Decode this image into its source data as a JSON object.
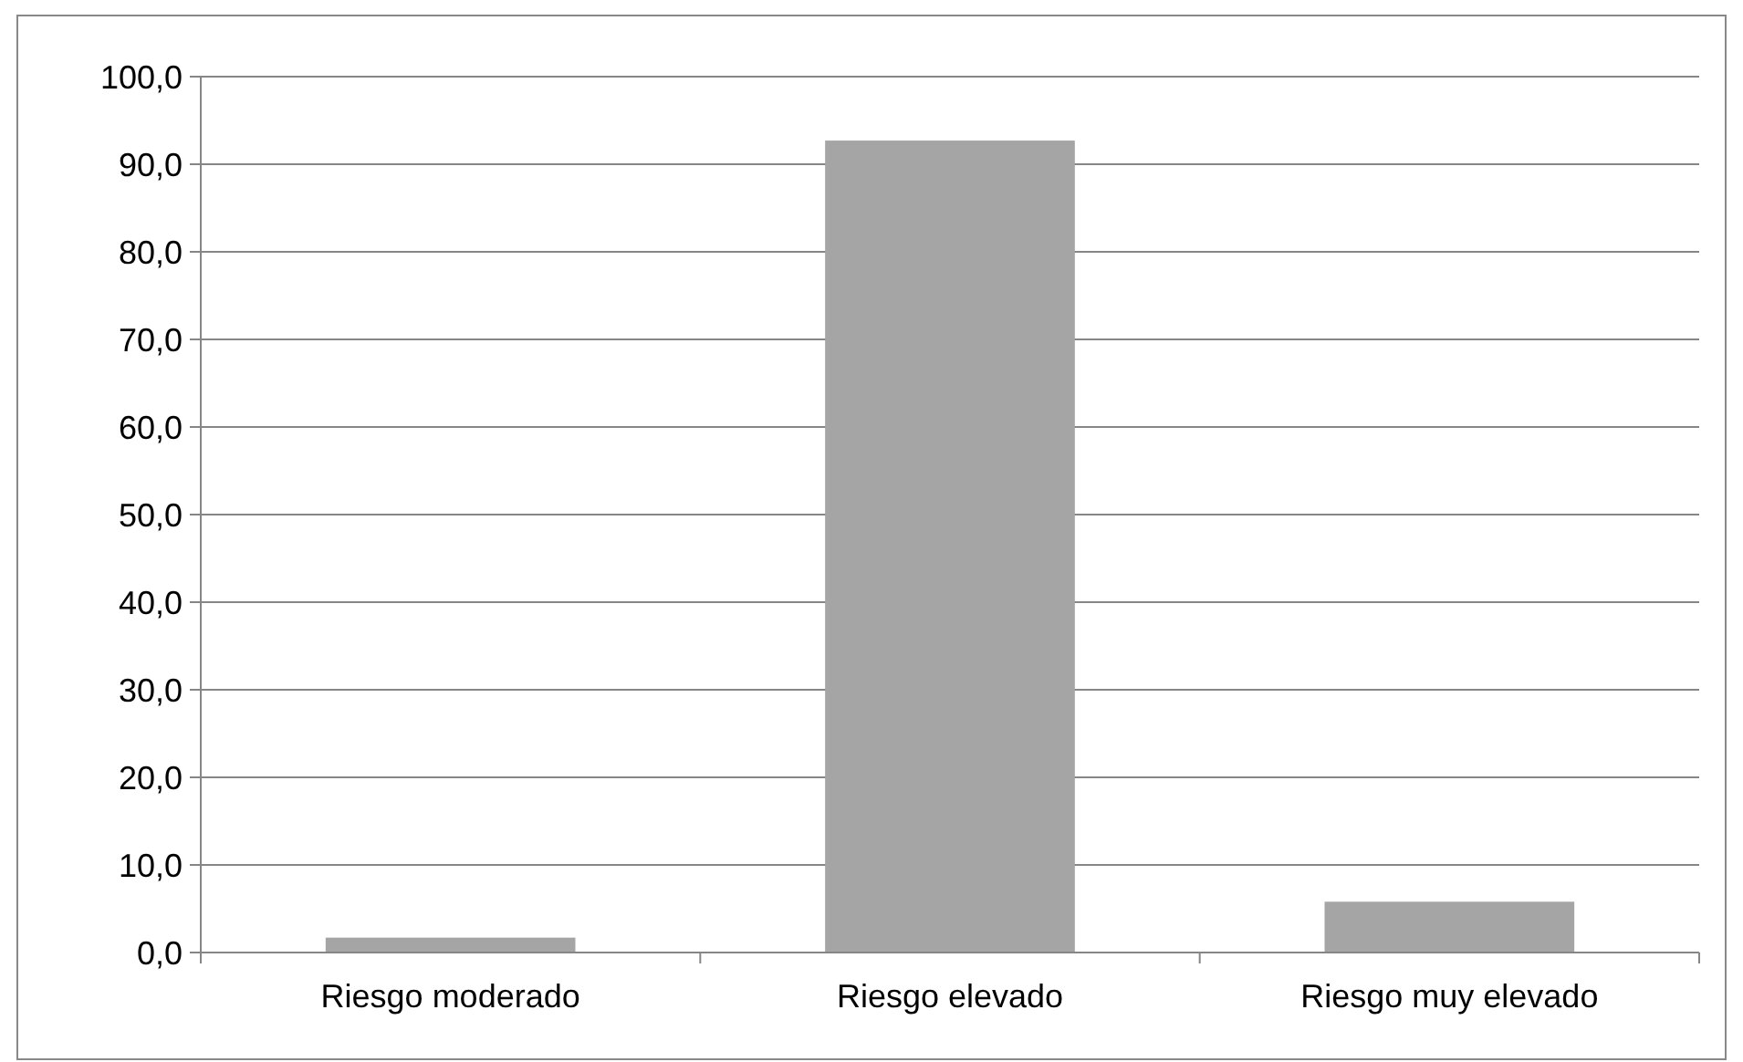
{
  "chart_data": {
    "type": "bar",
    "categories": [
      "Riesgo moderado",
      "Riesgo elevado",
      "Riesgo muy elevado"
    ],
    "values": [
      1.7,
      92.7,
      5.8
    ],
    "color": "#a5a5a5",
    "ylim": [
      0,
      100
    ],
    "yticks": [
      {
        "value": 0,
        "label": "0,0"
      },
      {
        "value": 10,
        "label": "10,0"
      },
      {
        "value": 20,
        "label": "20,0"
      },
      {
        "value": 30,
        "label": "30,0"
      },
      {
        "value": 40,
        "label": "40,0"
      },
      {
        "value": 50,
        "label": "50,0"
      },
      {
        "value": 60,
        "label": "60,0"
      },
      {
        "value": 70,
        "label": "70,0"
      },
      {
        "value": 80,
        "label": "80,0"
      },
      {
        "value": 90,
        "label": "90,0"
      },
      {
        "value": 100,
        "label": "100,0"
      }
    ],
    "grid": "y"
  }
}
